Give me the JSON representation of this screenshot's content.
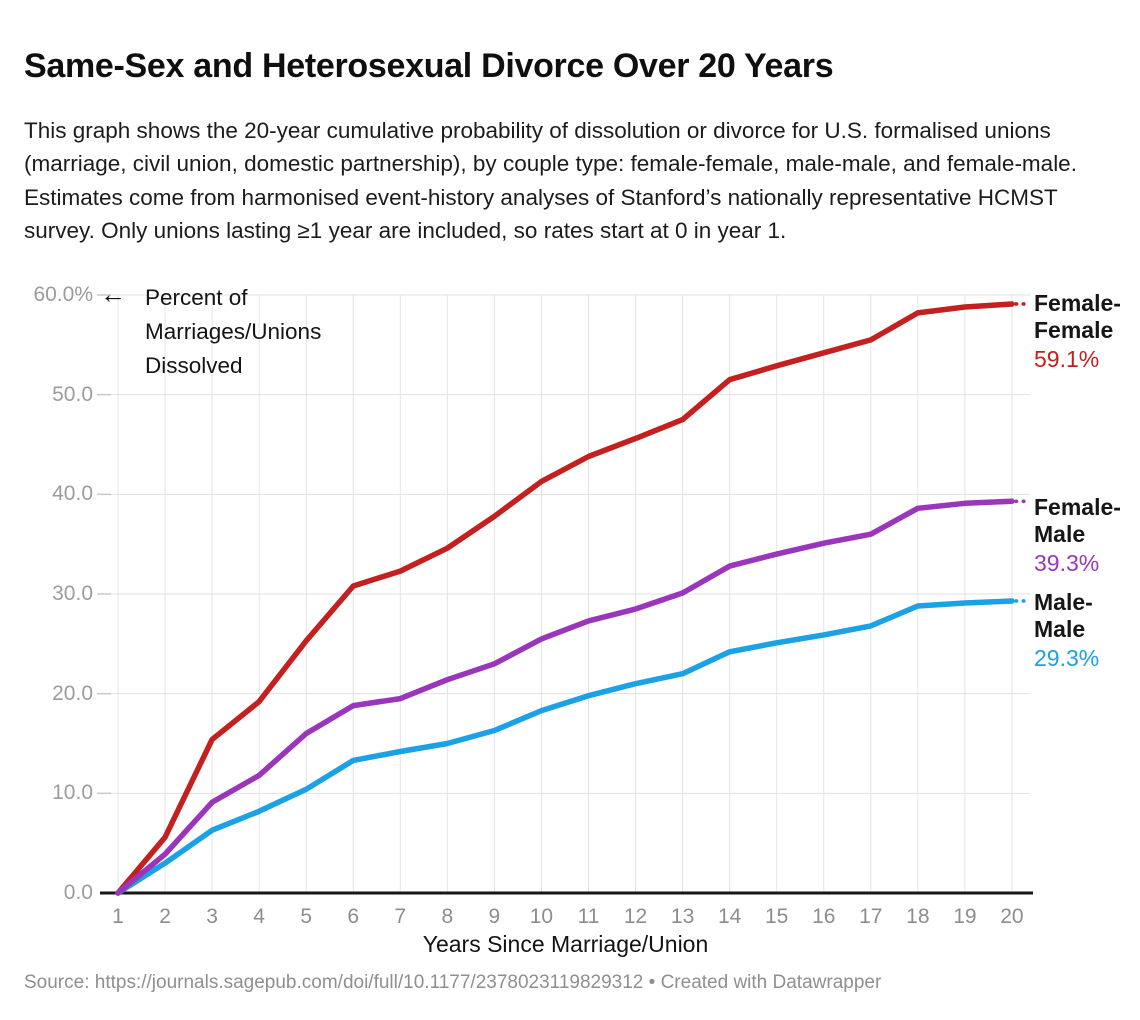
{
  "page": {
    "title": "Same-Sex and Heterosexual Divorce Over 20 Years",
    "description": "This graph shows the 20-year cumulative probability of dissolution or divorce for U.S. formalised unions (marriage, civil union, domestic partnership), by couple type: female-female, male-male, and female-male. Estimates come from harmonised event-history analyses of Stanford’s nationally representative HCMST survey. Only unions lasting ≥1 year are included, so rates start at 0 in year 1.",
    "source": "Source: https://journals.sagepub.com/doi/full/10.1177/2378023119829312 • Created with Datawrapper"
  },
  "chart_data": {
    "type": "line",
    "title": "Same-Sex and Heterosexual Divorce Over 20 Years",
    "xlabel": "Years Since Marriage/Union",
    "y_axis_annotation": {
      "arrow": "←",
      "text": "Percent of Marriages/Unions Dissolved"
    },
    "x": [
      1,
      2,
      3,
      4,
      5,
      6,
      7,
      8,
      9,
      10,
      11,
      12,
      13,
      14,
      15,
      16,
      17,
      18,
      19,
      20
    ],
    "ylim": [
      0,
      60
    ],
    "grid": true,
    "legend_position": "right-edge-direct-labels",
    "y_ticks": [
      {
        "value": 60,
        "label": "60.0%"
      },
      {
        "value": 50,
        "label": "50.0"
      },
      {
        "value": 40,
        "label": "40.0"
      },
      {
        "value": 30,
        "label": "30.0"
      },
      {
        "value": 20,
        "label": "20.0"
      },
      {
        "value": 10,
        "label": "10.0"
      },
      {
        "value": 0,
        "label": "0.0"
      }
    ],
    "series": [
      {
        "name": "Female-Female",
        "value_label": "59.1%",
        "final_value": 59.1,
        "color": "#c4201f",
        "values": [
          0,
          5.6,
          15.4,
          19.2,
          25.3,
          30.8,
          32.3,
          34.6,
          37.8,
          41.3,
          43.8,
          45.6,
          47.5,
          51.5,
          52.9,
          54.2,
          55.5,
          58.2,
          58.8,
          59.1
        ]
      },
      {
        "name": "Female-Male",
        "value_label": "39.3%",
        "final_value": 39.3,
        "color": "#9a36bc",
        "values": [
          0,
          3.9,
          9.1,
          11.8,
          16.0,
          18.8,
          19.5,
          21.4,
          23.0,
          25.5,
          27.3,
          28.5,
          30.1,
          32.8,
          34.0,
          35.1,
          36.0,
          38.6,
          39.1,
          39.3
        ]
      },
      {
        "name": "Male-Male",
        "value_label": "29.3%",
        "final_value": 29.3,
        "color": "#1ba1e6",
        "values": [
          0,
          3.0,
          6.3,
          8.2,
          10.4,
          13.3,
          14.2,
          15.0,
          16.3,
          18.3,
          19.8,
          21.0,
          22.0,
          24.2,
          25.1,
          25.9,
          26.8,
          28.8,
          29.1,
          29.3
        ]
      }
    ]
  }
}
